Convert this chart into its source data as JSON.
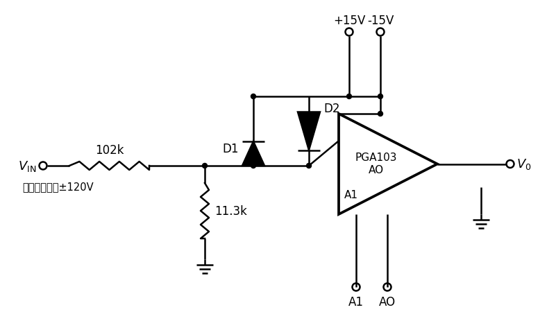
{
  "bg_color": "#ffffff",
  "line_color": "#000000",
  "resistor_102k_label": "102k",
  "resistor_11_3k_label": "11.3k",
  "d1_label": "D1",
  "d2_label": "D2",
  "pga_label1": "PGA103",
  "pga_label2": "AO",
  "pga_label3": "A1",
  "v_in_label": "$V_{\\mathrm{IN}}$",
  "v_out_label": "$V_0$",
  "input_note": "接收输入可达±120V",
  "plus15v_label": "+15V",
  "minus15v_label": "-15V",
  "a1_label": "A1",
  "a0_label": "AO",
  "lw": 1.8
}
